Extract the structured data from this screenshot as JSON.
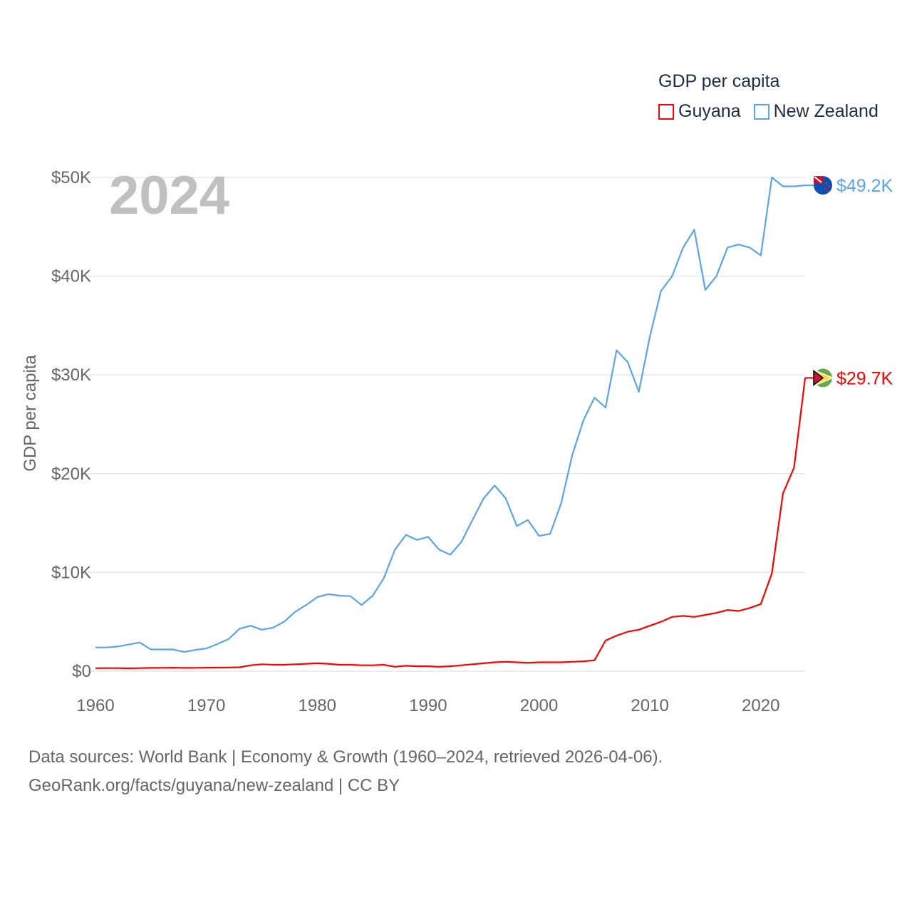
{
  "chart_data": {
    "type": "line",
    "title": "GDP per capita",
    "ylabel": "GDP per capita",
    "xlabel": "",
    "year_watermark": "2024",
    "xlim": [
      1960,
      2024
    ],
    "ylim": [
      0,
      50000
    ],
    "x_ticks": [
      1960,
      1970,
      1980,
      1990,
      2000,
      2010,
      2020
    ],
    "y_ticks": [
      0,
      10000,
      20000,
      30000,
      40000,
      50000
    ],
    "y_tick_labels": [
      "$0",
      "$10K",
      "$20K",
      "$30K",
      "$40K",
      "$50K"
    ],
    "grid": true,
    "legend_position": "top-right",
    "series": [
      {
        "name": "Guyana",
        "color": "#ff0000",
        "end_label": "$29.7K",
        "flag": "guyana-flag",
        "x_start": 1960,
        "values": [
          300,
          310,
          310,
          290,
          310,
          330,
          340,
          350,
          330,
          340,
          350,
          360,
          370,
          400,
          600,
          700,
          650,
          650,
          700,
          750,
          800,
          750,
          650,
          650,
          600,
          600,
          650,
          450,
          550,
          500,
          500,
          450,
          500,
          600,
          700,
          800,
          900,
          950,
          900,
          850,
          900,
          900,
          900,
          950,
          1000,
          1100,
          3100,
          3600,
          4000,
          4200,
          4600,
          5000,
          5500,
          5600,
          5500,
          5700,
          5900,
          6200,
          6100,
          6400,
          6800,
          9900,
          18000,
          20600,
          29700
        ]
      },
      {
        "name": "New Zealand",
        "color": "#5ba4ea",
        "end_label": "$49.2K",
        "flag": "new-zealand-flag",
        "x_start": 1960,
        "values": [
          2400,
          2400,
          2500,
          2700,
          2900,
          2200,
          2200,
          2200,
          1950,
          2150,
          2300,
          2750,
          3250,
          4300,
          4600,
          4200,
          4400,
          5000,
          6000,
          6700,
          7500,
          7800,
          7650,
          7600,
          6700,
          7650,
          9400,
          12300,
          13800,
          13300,
          13600,
          12300,
          11800,
          13100,
          15300,
          17500,
          18800,
          17500,
          14700,
          15300,
          13700,
          13900,
          17000,
          21900,
          25400,
          27700,
          26700,
          32500,
          31300,
          28300,
          33900,
          38500,
          40000,
          42900,
          44700,
          38600,
          40000,
          42900,
          43200,
          42900,
          42100,
          50000,
          49100,
          49100,
          49200
        ]
      }
    ]
  },
  "footer": {
    "line1": "Data sources: World Bank | Economy & Growth (1960–2024, retrieved 2026-04-06).",
    "line2": "GeoRank.org/facts/guyana/new-zealand | CC BY"
  }
}
